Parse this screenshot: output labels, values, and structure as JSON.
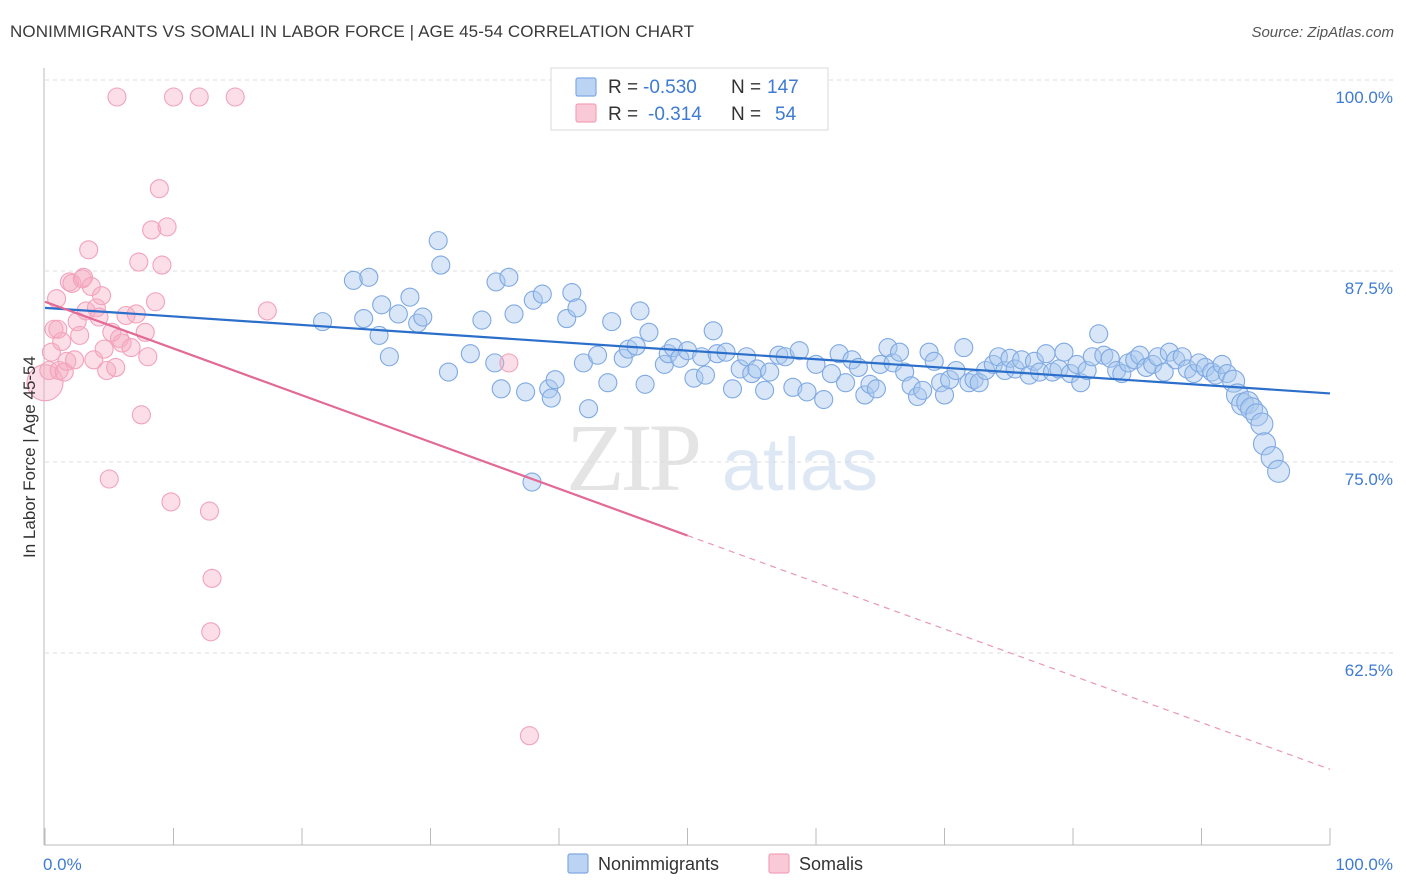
{
  "title": "NONIMMIGRANTS VS SOMALI IN LABOR FORCE | AGE 45-54 CORRELATION CHART",
  "source": "Source: ZipAtlas.com",
  "watermark": {
    "zip": "ZIP",
    "atlas": "atlas"
  },
  "chart_data": {
    "type": "scatter",
    "ylabel": "In Labor Force | Age 45-54",
    "xlim": [
      0,
      100
    ],
    "ylim": [
      52,
      102
    ],
    "x_tick_labels": {
      "left": "0.0%",
      "right": "100.0%"
    },
    "y_ticks": [
      {
        "value": 100,
        "label": "100.0%"
      },
      {
        "value": 87.5,
        "label": "87.5%"
      },
      {
        "value": 75,
        "label": "75.0%"
      },
      {
        "value": 62.5,
        "label": "62.5%"
      }
    ],
    "grid": "horizontal dashed",
    "legend_position": "top-center",
    "stats": [
      {
        "r_label": "R =",
        "r_value": "-0.530",
        "n_label": "N =",
        "n_value": "147",
        "color": "#a9c7ee"
      },
      {
        "r_label": "R =",
        "r_value": "-0.314",
        "n_label": "N =",
        "n_value": "54",
        "color": "#f5b7c8"
      }
    ],
    "series": [
      {
        "name": "Nonimmigrants",
        "color": "#7fa9e3",
        "line_color": "#2b6fcb",
        "trend": {
          "x": [
            0,
            100
          ],
          "y": [
            86.2,
            80.6
          ]
        },
        "points": [
          [
            21.6,
            85.3
          ],
          [
            24.0,
            88.0
          ],
          [
            25.2,
            88.2
          ],
          [
            24.8,
            85.5
          ],
          [
            26.0,
            84.4
          ],
          [
            26.2,
            86.4
          ],
          [
            26.8,
            83.0
          ],
          [
            27.5,
            85.8
          ],
          [
            28.4,
            86.9
          ],
          [
            29.0,
            85.2
          ],
          [
            29.4,
            85.6
          ],
          [
            30.6,
            90.6
          ],
          [
            30.8,
            89.0
          ],
          [
            31.4,
            82.0
          ],
          [
            33.1,
            83.2
          ],
          [
            34.0,
            85.4
          ],
          [
            35.0,
            82.6
          ],
          [
            35.1,
            87.9
          ],
          [
            35.5,
            80.9
          ],
          [
            36.1,
            88.2
          ],
          [
            36.5,
            85.8
          ],
          [
            37.4,
            80.7
          ],
          [
            38.0,
            86.7
          ],
          [
            38.7,
            87.1
          ],
          [
            39.2,
            80.9
          ],
          [
            39.4,
            80.3
          ],
          [
            39.7,
            81.5
          ],
          [
            40.6,
            85.5
          ],
          [
            41.0,
            87.2
          ],
          [
            41.4,
            86.2
          ],
          [
            41.9,
            82.6
          ],
          [
            42.3,
            79.6
          ],
          [
            43.0,
            83.1
          ],
          [
            43.8,
            81.3
          ],
          [
            44.1,
            85.3
          ],
          [
            45.0,
            82.9
          ],
          [
            45.4,
            83.5
          ],
          [
            46.0,
            83.7
          ],
          [
            46.3,
            86.0
          ],
          [
            46.7,
            81.2
          ],
          [
            47.0,
            84.6
          ],
          [
            48.2,
            82.5
          ],
          [
            48.5,
            83.2
          ],
          [
            48.9,
            83.6
          ],
          [
            49.4,
            82.9
          ],
          [
            50.0,
            83.4
          ],
          [
            50.5,
            81.6
          ],
          [
            51.1,
            83.0
          ],
          [
            51.4,
            81.8
          ],
          [
            52.0,
            84.7
          ],
          [
            52.3,
            83.2
          ],
          [
            53.0,
            83.3
          ],
          [
            53.5,
            80.9
          ],
          [
            54.1,
            82.2
          ],
          [
            54.6,
            83.0
          ],
          [
            55.0,
            81.9
          ],
          [
            55.4,
            82.2
          ],
          [
            56.0,
            80.8
          ],
          [
            56.4,
            82.0
          ],
          [
            57.1,
            83.1
          ],
          [
            57.6,
            83.0
          ],
          [
            58.2,
            81.0
          ],
          [
            58.7,
            83.4
          ],
          [
            59.3,
            80.7
          ],
          [
            60.0,
            82.5
          ],
          [
            60.6,
            80.2
          ],
          [
            61.2,
            81.9
          ],
          [
            61.8,
            83.2
          ],
          [
            62.3,
            81.3
          ],
          [
            62.8,
            82.8
          ],
          [
            63.3,
            82.3
          ],
          [
            63.8,
            80.5
          ],
          [
            64.2,
            81.2
          ],
          [
            64.7,
            80.9
          ],
          [
            65.0,
            82.5
          ],
          [
            65.6,
            83.6
          ],
          [
            66.0,
            82.6
          ],
          [
            66.5,
            83.3
          ],
          [
            66.9,
            82.0
          ],
          [
            67.4,
            81.1
          ],
          [
            67.9,
            80.4
          ],
          [
            68.3,
            80.8
          ],
          [
            68.8,
            83.3
          ],
          [
            69.2,
            82.7
          ],
          [
            69.7,
            81.3
          ],
          [
            70.0,
            80.5
          ],
          [
            70.4,
            81.5
          ],
          [
            70.9,
            82.1
          ],
          [
            71.5,
            83.6
          ],
          [
            71.9,
            81.3
          ],
          [
            72.3,
            81.5
          ],
          [
            72.7,
            81.3
          ],
          [
            73.2,
            82.1
          ],
          [
            73.8,
            82.5
          ],
          [
            74.2,
            83.0
          ],
          [
            74.7,
            82.1
          ],
          [
            75.1,
            82.9
          ],
          [
            75.5,
            82.2
          ],
          [
            76.0,
            82.8
          ],
          [
            76.6,
            81.8
          ],
          [
            77.0,
            82.7
          ],
          [
            77.4,
            82.0
          ],
          [
            77.9,
            83.2
          ],
          [
            78.4,
            82.0
          ],
          [
            78.9,
            82.2
          ],
          [
            79.3,
            83.3
          ],
          [
            79.8,
            81.9
          ],
          [
            80.3,
            82.5
          ],
          [
            80.6,
            81.3
          ],
          [
            81.1,
            82.1
          ],
          [
            81.5,
            83.0
          ],
          [
            82.0,
            84.5
          ],
          [
            82.4,
            83.1
          ],
          [
            82.9,
            82.9
          ],
          [
            83.4,
            82.1
          ],
          [
            83.8,
            81.9
          ],
          [
            84.3,
            82.6
          ],
          [
            84.8,
            82.8
          ],
          [
            85.2,
            83.1
          ],
          [
            85.7,
            82.3
          ],
          [
            86.2,
            82.5
          ],
          [
            86.6,
            83.0
          ],
          [
            87.1,
            82.0
          ],
          [
            87.5,
            83.3
          ],
          [
            88.0,
            82.8
          ],
          [
            88.5,
            83.0
          ],
          [
            88.9,
            82.2
          ],
          [
            89.4,
            81.9
          ],
          [
            89.8,
            82.6
          ],
          [
            90.3,
            82.3
          ],
          [
            90.8,
            82.0
          ],
          [
            91.1,
            81.8
          ],
          [
            91.6,
            82.5
          ],
          [
            92.0,
            81.9
          ],
          [
            92.5,
            81.4
          ],
          [
            92.8,
            80.5
          ],
          [
            93.2,
            79.9
          ],
          [
            93.6,
            80.0
          ],
          [
            93.9,
            79.6
          ],
          [
            94.3,
            79.2
          ],
          [
            94.7,
            78.6
          ],
          [
            94.9,
            77.3
          ],
          [
            95.5,
            76.4
          ],
          [
            96.0,
            75.5
          ],
          [
            37.9,
            74.8
          ]
        ]
      },
      {
        "name": "Somalis",
        "color": "#f3a2bb",
        "line_color": "#e36a96",
        "trend": {
          "x": [
            0,
            50
          ],
          "y": [
            86.6,
            71.3
          ]
        },
        "trend_extension": {
          "x": [
            50,
            100
          ],
          "y": [
            71.3,
            56.0
          ]
        },
        "points": [
          [
            0.0,
            81.3
          ],
          [
            0.3,
            82.1
          ],
          [
            0.5,
            83.3
          ],
          [
            0.7,
            84.8
          ],
          [
            0.9,
            86.8
          ],
          [
            1.1,
            82.1
          ],
          [
            1.3,
            84.0
          ],
          [
            1.5,
            82.0
          ],
          [
            1.7,
            82.7
          ],
          [
            1.9,
            87.9
          ],
          [
            2.1,
            87.8
          ],
          [
            2.3,
            82.8
          ],
          [
            2.5,
            85.3
          ],
          [
            2.7,
            84.4
          ],
          [
            2.9,
            88.1
          ],
          [
            3.0,
            88.2
          ],
          [
            3.2,
            86.0
          ],
          [
            3.4,
            90.0
          ],
          [
            3.6,
            87.6
          ],
          [
            3.8,
            82.8
          ],
          [
            4.0,
            86.2
          ],
          [
            4.2,
            85.6
          ],
          [
            4.4,
            87.0
          ],
          [
            4.6,
            83.5
          ],
          [
            4.8,
            82.1
          ],
          [
            5.0,
            75.0
          ],
          [
            5.2,
            84.6
          ],
          [
            5.5,
            82.3
          ],
          [
            5.8,
            84.2
          ],
          [
            6.0,
            83.9
          ],
          [
            6.3,
            85.7
          ],
          [
            6.7,
            83.6
          ],
          [
            7.1,
            85.8
          ],
          [
            7.3,
            89.2
          ],
          [
            7.5,
            79.2
          ],
          [
            7.8,
            84.6
          ],
          [
            8.0,
            83.0
          ],
          [
            8.3,
            91.3
          ],
          [
            8.6,
            86.6
          ],
          [
            8.9,
            94.0
          ],
          [
            9.1,
            89.0
          ],
          [
            9.5,
            91.5
          ],
          [
            9.8,
            73.5
          ],
          [
            10.0,
            100.0
          ],
          [
            12.0,
            100.0
          ],
          [
            12.8,
            72.9
          ],
          [
            13.0,
            68.5
          ],
          [
            12.9,
            65.0
          ],
          [
            14.8,
            100.0
          ],
          [
            17.3,
            86.0
          ],
          [
            36.1,
            82.6
          ],
          [
            37.7,
            58.2
          ],
          [
            5.6,
            100.0
          ],
          [
            1.0,
            84.8
          ]
        ]
      }
    ]
  }
}
